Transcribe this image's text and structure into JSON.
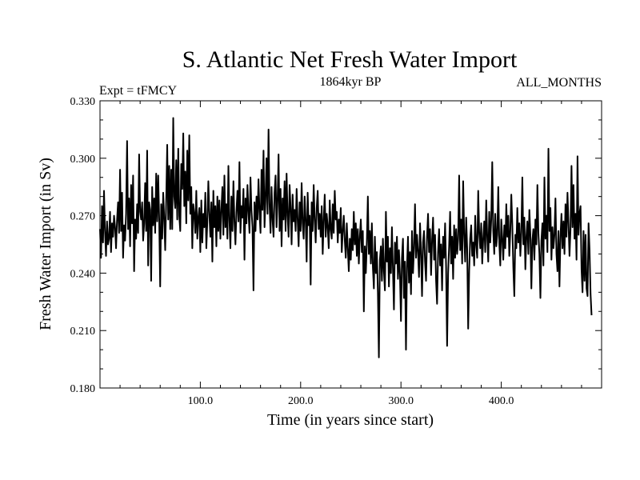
{
  "chart_data": {
    "type": "line",
    "title": "S. Atlantic Net Fresh Water Import",
    "subtitle_left": "Expt = tFMCY",
    "subtitle_center": "1864kyr BP",
    "subtitle_right": "ALL_MONTHS",
    "xlabel": "Time (in years since start)",
    "ylabel": "Fresh Water Import (in Sv)",
    "xlim": [
      0,
      500
    ],
    "ylim": [
      0.18,
      0.33
    ],
    "x_ticks": [
      100,
      200,
      300,
      400
    ],
    "x_tick_labels": [
      "100.0",
      "200.0",
      "300.0",
      "400.0"
    ],
    "x_minor_step": 20,
    "y_ticks": [
      0.18,
      0.21,
      0.24,
      0.27,
      0.3,
      0.33
    ],
    "y_tick_labels": [
      "0.180",
      "0.210",
      "0.240",
      "0.270",
      "0.300",
      "0.330"
    ],
    "y_minor_step": 0.01,
    "grid": false,
    "series": [
      {
        "name": "Fresh Water Import",
        "x_start": 0,
        "x_step": 1,
        "values": [
          0.263,
          0.248,
          0.275,
          0.256,
          0.283,
          0.262,
          0.249,
          0.267,
          0.255,
          0.258,
          0.272,
          0.251,
          0.266,
          0.259,
          0.27,
          0.264,
          0.253,
          0.268,
          0.277,
          0.261,
          0.294,
          0.262,
          0.282,
          0.248,
          0.265,
          0.257,
          0.271,
          0.309,
          0.263,
          0.279,
          0.254,
          0.286,
          0.266,
          0.291,
          0.241,
          0.268,
          0.258,
          0.276,
          0.261,
          0.302,
          0.272,
          0.268,
          0.277,
          0.257,
          0.266,
          0.287,
          0.262,
          0.304,
          0.244,
          0.277,
          0.273,
          0.236,
          0.285,
          0.265,
          0.279,
          0.261,
          0.292,
          0.267,
          0.291,
          0.268,
          0.233,
          0.276,
          0.258,
          0.282,
          0.269,
          0.252,
          0.278,
          0.307,
          0.268,
          0.296,
          0.263,
          0.294,
          0.263,
          0.321,
          0.28,
          0.274,
          0.299,
          0.268,
          0.305,
          0.27,
          0.262,
          0.297,
          0.284,
          0.313,
          0.275,
          0.293,
          0.266,
          0.304,
          0.278,
          0.312,
          0.271,
          0.285,
          0.253,
          0.276,
          0.271,
          0.261,
          0.283,
          0.258,
          0.269,
          0.274,
          0.251,
          0.278,
          0.256,
          0.271,
          0.264,
          0.282,
          0.253,
          0.267,
          0.288,
          0.271,
          0.259,
          0.277,
          0.246,
          0.283,
          0.264,
          0.275,
          0.254,
          0.28,
          0.262,
          0.278,
          0.258,
          0.273,
          0.285,
          0.26,
          0.291,
          0.264,
          0.276,
          0.258,
          0.296,
          0.268,
          0.253,
          0.28,
          0.262,
          0.288,
          0.267,
          0.255,
          0.272,
          0.283,
          0.267,
          0.298,
          0.261,
          0.275,
          0.269,
          0.284,
          0.247,
          0.279,
          0.266,
          0.286,
          0.272,
          0.261,
          0.29,
          0.273,
          0.264,
          0.231,
          0.277,
          0.262,
          0.28,
          0.268,
          0.289,
          0.272,
          0.261,
          0.294,
          0.273,
          0.304,
          0.264,
          0.279,
          0.3,
          0.271,
          0.315,
          0.276,
          0.261,
          0.285,
          0.268,
          0.259,
          0.282,
          0.291,
          0.264,
          0.278,
          0.302,
          0.262,
          0.284,
          0.254,
          0.279,
          0.268,
          0.288,
          0.262,
          0.292,
          0.27,
          0.259,
          0.286,
          0.274,
          0.255,
          0.281,
          0.267,
          0.273,
          0.262,
          0.284,
          0.268,
          0.254,
          0.277,
          0.262,
          0.287,
          0.266,
          0.258,
          0.28,
          0.268,
          0.246,
          0.282,
          0.265,
          0.27,
          0.234,
          0.277,
          0.262,
          0.286,
          0.268,
          0.256,
          0.274,
          0.283,
          0.263,
          0.271,
          0.259,
          0.275,
          0.25,
          0.268,
          0.281,
          0.259,
          0.271,
          0.264,
          0.253,
          0.278,
          0.263,
          0.258,
          0.276,
          0.261,
          0.283,
          0.268,
          0.272,
          0.256,
          0.268,
          0.261,
          0.274,
          0.251,
          0.262,
          0.27,
          0.257,
          0.248,
          0.266,
          0.253,
          0.241,
          0.258,
          0.247,
          0.263,
          0.252,
          0.272,
          0.255,
          0.266,
          0.249,
          0.263,
          0.245,
          0.259,
          0.268,
          0.251,
          0.262,
          0.22,
          0.254,
          0.24,
          0.256,
          0.28,
          0.25,
          0.262,
          0.245,
          0.266,
          0.243,
          0.232,
          0.259,
          0.24,
          0.251,
          0.23,
          0.196,
          0.247,
          0.254,
          0.236,
          0.258,
          0.241,
          0.231,
          0.272,
          0.246,
          0.259,
          0.233,
          0.253,
          0.24,
          0.264,
          0.242,
          0.221,
          0.256,
          0.245,
          0.259,
          0.237,
          0.252,
          0.239,
          0.215,
          0.248,
          0.258,
          0.227,
          0.246,
          0.2,
          0.243,
          0.259,
          0.235,
          0.251,
          0.229,
          0.262,
          0.24,
          0.253,
          0.276,
          0.248,
          0.26,
          0.251,
          0.238,
          0.266,
          0.251,
          0.228,
          0.256,
          0.262,
          0.246,
          0.236,
          0.259,
          0.271,
          0.251,
          0.263,
          0.239,
          0.257,
          0.269,
          0.247,
          0.26,
          0.236,
          0.224,
          0.251,
          0.263,
          0.244,
          0.255,
          0.231,
          0.259,
          0.248,
          0.266,
          0.243,
          0.202,
          0.24,
          0.254,
          0.272,
          0.245,
          0.259,
          0.237,
          0.265,
          0.248,
          0.263,
          0.25,
          0.258,
          0.291,
          0.252,
          0.268,
          0.245,
          0.288,
          0.26,
          0.246,
          0.269,
          0.253,
          0.211,
          0.241,
          0.258,
          0.265,
          0.249,
          0.256,
          0.244,
          0.27,
          0.255,
          0.248,
          0.283,
          0.261,
          0.253,
          0.266,
          0.245,
          0.258,
          0.267,
          0.251,
          0.278,
          0.259,
          0.246,
          0.272,
          0.256,
          0.268,
          0.298,
          0.262,
          0.25,
          0.271,
          0.254,
          0.26,
          0.285,
          0.256,
          0.244,
          0.268,
          0.258,
          0.247,
          0.265,
          0.253,
          0.276,
          0.259,
          0.27,
          0.249,
          0.262,
          0.281,
          0.265,
          0.243,
          0.228,
          0.26,
          0.253,
          0.274,
          0.256,
          0.266,
          0.249,
          0.261,
          0.29,
          0.255,
          0.269,
          0.242,
          0.259,
          0.267,
          0.25,
          0.273,
          0.26,
          0.232,
          0.257,
          0.263,
          0.247,
          0.268,
          0.255,
          0.286,
          0.261,
          0.25,
          0.227,
          0.257,
          0.266,
          0.244,
          0.29,
          0.258,
          0.27,
          0.251,
          0.305,
          0.262,
          0.274,
          0.247,
          0.264,
          0.253,
          0.26,
          0.279,
          0.25,
          0.241,
          0.262,
          0.233,
          0.259,
          0.271,
          0.253,
          0.267,
          0.25,
          0.276,
          0.259,
          0.282,
          0.266,
          0.249,
          0.263,
          0.296,
          0.264,
          0.286,
          0.258,
          0.271,
          0.247,
          0.301,
          0.26,
          0.271,
          0.275,
          0.242,
          0.23,
          0.262,
          0.236,
          0.26,
          0.232,
          0.228,
          0.266,
          0.252,
          0.229,
          0.218
        ]
      }
    ]
  }
}
